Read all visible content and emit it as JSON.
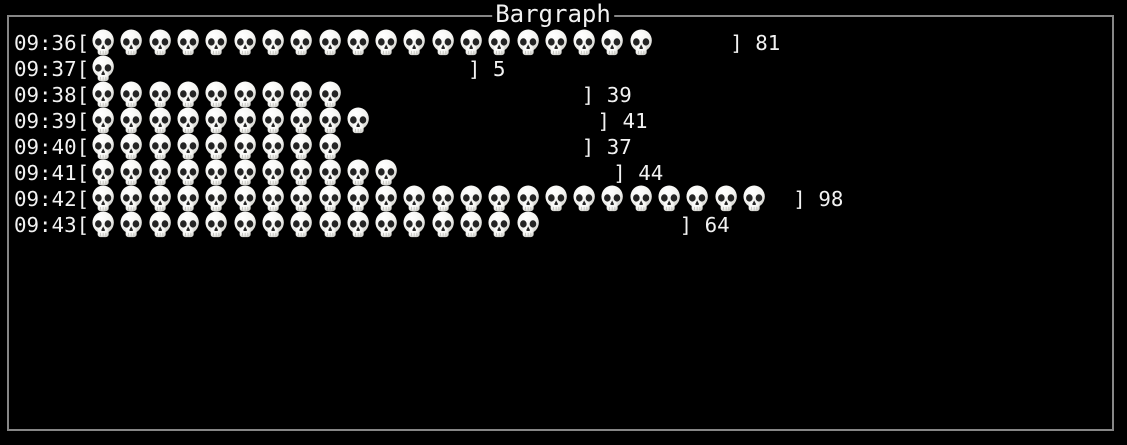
{
  "window": {
    "title": "Bargraph"
  },
  "colors": {
    "background": "#000000",
    "border": "#868686",
    "text": "#f2f2f2",
    "skull_body": "#f4f4f1",
    "skull_shade": "#cfcfca",
    "skull_dark": "#242424"
  },
  "chart_data": {
    "type": "bar",
    "orientation": "horizontal",
    "title": "Bargraph",
    "symbol": "skull-emoji",
    "open_bracket": "[",
    "close_bracket": "]",
    "categories": [
      "09:36",
      "09:37",
      "09:38",
      "09:39",
      "09:40",
      "09:41",
      "09:42",
      "09:43"
    ],
    "values": [
      81,
      5,
      39,
      41,
      37,
      44,
      98,
      64
    ],
    "symbol_counts": [
      20,
      1,
      9,
      10,
      9,
      11,
      24,
      16
    ],
    "pad_spaces": [
      6,
      28,
      19,
      18,
      19,
      17,
      2,
      11
    ],
    "xlabel": "",
    "ylabel": "",
    "value_range": [
      0,
      100
    ],
    "grid": false,
    "legend": false
  }
}
